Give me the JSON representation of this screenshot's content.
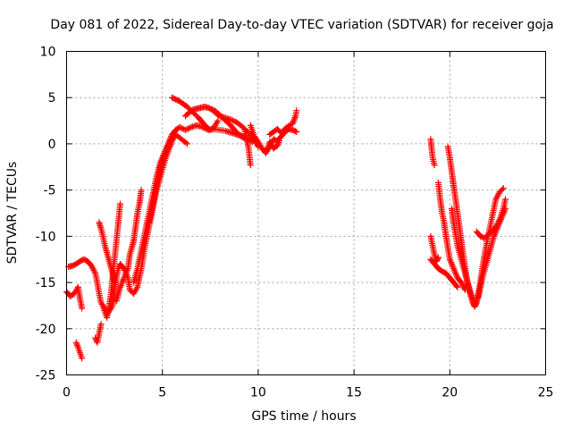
{
  "chart_data": {
    "type": "scatter",
    "title": "Day 081 of 2022, Sidereal Day-to-day VTEC variation (SDTVAR) for receiver goja",
    "xlabel": "GPS time / hours",
    "ylabel": "SDTVAR / TECUs",
    "xlim": [
      0,
      25
    ],
    "ylim": [
      -25,
      10
    ],
    "xticks": [
      0,
      5,
      10,
      15,
      20,
      25
    ],
    "yticks": [
      -25,
      -20,
      -15,
      -10,
      -5,
      0,
      5,
      10
    ],
    "grid": true,
    "marker": "+",
    "color": "#ff0000",
    "series": [
      {
        "name": "SDTVAR",
        "segments": [
          [
            [
              0.0,
              -16.0
            ],
            [
              0.2,
              -16.5
            ],
            [
              0.4,
              -16.2
            ],
            [
              0.6,
              -15.5
            ],
            [
              0.7,
              -16.8
            ],
            [
              0.8,
              -17.8
            ]
          ],
          [
            [
              0.1,
              -13.3
            ],
            [
              0.3,
              -13.2
            ],
            [
              0.5,
              -13.0
            ],
            [
              0.7,
              -12.7
            ],
            [
              0.9,
              -12.5
            ],
            [
              1.1,
              -12.7
            ],
            [
              1.3,
              -13.2
            ],
            [
              1.5,
              -14.0
            ],
            [
              1.6,
              -15.0
            ],
            [
              1.7,
              -16.2
            ],
            [
              1.8,
              -17.2
            ],
            [
              2.0,
              -17.8
            ],
            [
              2.2,
              -18.2
            ],
            [
              2.4,
              -17.5
            ],
            [
              2.5,
              -16.0
            ],
            [
              2.6,
              -14.5
            ],
            [
              2.7,
              -13.5
            ],
            [
              2.8,
              -13.0
            ],
            [
              3.0,
              -13.5
            ],
            [
              3.2,
              -14.5
            ],
            [
              3.3,
              -15.8
            ],
            [
              3.5,
              -16.2
            ],
            [
              3.7,
              -15.5
            ],
            [
              3.9,
              -13.5
            ],
            [
              4.1,
              -11.0
            ],
            [
              4.3,
              -9.0
            ],
            [
              4.5,
              -7.0
            ],
            [
              4.7,
              -5.0
            ],
            [
              4.9,
              -3.5
            ],
            [
              5.1,
              -2.0
            ],
            [
              5.3,
              -0.8
            ],
            [
              5.5,
              0.3
            ],
            [
              5.7,
              1.0
            ]
          ],
          [
            [
              0.5,
              -21.5
            ],
            [
              0.6,
              -22.0
            ],
            [
              0.8,
              -23.2
            ]
          ],
          [
            [
              1.5,
              -21.0
            ],
            [
              1.6,
              -21.5
            ],
            [
              1.7,
              -20.5
            ],
            [
              1.8,
              -19.5
            ]
          ],
          [
            [
              1.7,
              -8.5
            ],
            [
              1.8,
              -9.2
            ],
            [
              1.9,
              -10.0
            ],
            [
              2.0,
              -11.0
            ],
            [
              2.2,
              -12.5
            ],
            [
              2.4,
              -14.0
            ],
            [
              2.5,
              -15.0
            ]
          ],
          [
            [
              1.9,
              -17.5
            ],
            [
              2.0,
              -18.2
            ],
            [
              2.1,
              -18.8
            ],
            [
              2.2,
              -18.0
            ],
            [
              2.3,
              -16.5
            ],
            [
              2.4,
              -14.5
            ],
            [
              2.5,
              -12.5
            ],
            [
              2.6,
              -10.5
            ],
            [
              2.7,
              -8.5
            ],
            [
              2.75,
              -7.5
            ],
            [
              2.8,
              -6.5
            ]
          ],
          [
            [
              2.6,
              -17.0
            ],
            [
              2.8,
              -15.5
            ],
            [
              3.0,
              -14.5
            ],
            [
              3.2,
              -13.5
            ],
            [
              3.3,
              -12.0
            ],
            [
              3.5,
              -10.5
            ],
            [
              3.6,
              -9.0
            ],
            [
              3.7,
              -7.5
            ],
            [
              3.8,
              -6.5
            ],
            [
              3.9,
              -5.0
            ]
          ],
          [
            [
              3.5,
              -15.0
            ],
            [
              3.7,
              -13.5
            ],
            [
              3.9,
              -11.5
            ],
            [
              4.1,
              -9.5
            ],
            [
              4.3,
              -7.5
            ],
            [
              4.5,
              -5.5
            ],
            [
              4.7,
              -3.5
            ],
            [
              4.9,
              -2.0
            ],
            [
              5.1,
              -1.0
            ],
            [
              5.3,
              0.0
            ],
            [
              5.5,
              1.0
            ],
            [
              5.7,
              1.5
            ],
            [
              5.9,
              1.8
            ],
            [
              6.2,
              1.5
            ],
            [
              6.5,
              1.8
            ],
            [
              6.8,
              2.0
            ],
            [
              7.1,
              1.8
            ],
            [
              7.4,
              1.5
            ],
            [
              7.7,
              1.6
            ],
            [
              8.0,
              1.5
            ],
            [
              8.3,
              1.4
            ],
            [
              8.6,
              1.2
            ],
            [
              8.9,
              1.0
            ],
            [
              9.2,
              0.8
            ],
            [
              9.5,
              0.5
            ],
            [
              9.7,
              0.2
            ]
          ],
          [
            [
              4.3,
              -8.5
            ],
            [
              4.5,
              -6.5
            ],
            [
              4.7,
              -4.5
            ],
            [
              4.9,
              -2.5
            ],
            [
              5.1,
              -1.2
            ],
            [
              5.3,
              -0.3
            ],
            [
              5.5,
              0.6
            ],
            [
              5.7,
              1.0
            ],
            [
              6.0,
              0.5
            ],
            [
              6.3,
              0.0
            ]
          ],
          [
            [
              5.5,
              5.0
            ],
            [
              5.7,
              4.8
            ],
            [
              5.9,
              4.6
            ],
            [
              6.1,
              4.3
            ],
            [
              6.3,
              4.0
            ],
            [
              6.5,
              3.6
            ],
            [
              6.7,
              3.2
            ],
            [
              6.9,
              2.8
            ],
            [
              7.1,
              2.3
            ],
            [
              7.3,
              1.8
            ],
            [
              7.5,
              1.5
            ],
            [
              7.7,
              1.8
            ],
            [
              7.9,
              2.5
            ]
          ],
          [
            [
              6.2,
              3.0
            ],
            [
              6.4,
              3.4
            ],
            [
              6.6,
              3.7
            ],
            [
              6.8,
              3.8
            ],
            [
              7.0,
              3.9
            ],
            [
              7.2,
              4.0
            ],
            [
              7.4,
              3.9
            ],
            [
              7.6,
              3.7
            ],
            [
              7.8,
              3.5
            ],
            [
              8.0,
              3.1
            ],
            [
              8.2,
              2.7
            ],
            [
              8.4,
              2.3
            ],
            [
              8.6,
              1.9
            ],
            [
              8.8,
              1.4
            ],
            [
              9.0,
              1.0
            ],
            [
              9.2,
              0.7
            ],
            [
              9.4,
              0.5
            ]
          ],
          [
            [
              7.6,
              3.7
            ],
            [
              7.8,
              3.3
            ],
            [
              8.0,
              3.0
            ],
            [
              8.3,
              2.8
            ],
            [
              8.6,
              2.6
            ],
            [
              8.9,
              2.3
            ],
            [
              9.2,
              1.8
            ],
            [
              9.4,
              1.4
            ],
            [
              9.6,
              1.0
            ],
            [
              9.8,
              0.4
            ],
            [
              10.0,
              -0.3
            ]
          ],
          [
            [
              9.3,
              1.5
            ],
            [
              9.4,
              0.5
            ],
            [
              9.5,
              -0.5
            ],
            [
              9.55,
              -1.5
            ],
            [
              9.6,
              -2.3
            ]
          ],
          [
            [
              9.6,
              2.0
            ],
            [
              9.8,
              0.8
            ],
            [
              10.0,
              0.2
            ],
            [
              10.2,
              -0.5
            ],
            [
              10.4,
              -1.0
            ],
            [
              10.6,
              -0.3
            ],
            [
              10.8,
              0.5
            ],
            [
              11.0,
              0.3
            ],
            [
              11.2,
              0.8
            ],
            [
              11.4,
              1.3
            ],
            [
              11.6,
              1.6
            ],
            [
              11.8,
              1.5
            ],
            [
              12.0,
              1.3
            ]
          ],
          [
            [
              10.6,
              1.0
            ],
            [
              10.8,
              1.3
            ],
            [
              11.0,
              1.6
            ],
            [
              11.2,
              1.2
            ],
            [
              11.5,
              1.8
            ],
            [
              11.8,
              2.2
            ],
            [
              11.95,
              3.0
            ],
            [
              12.0,
              3.6
            ]
          ],
          [
            [
              10.4,
              -0.8
            ],
            [
              10.5,
              -0.4
            ],
            [
              10.6,
              0.2
            ],
            [
              10.8,
              -0.5
            ],
            [
              11.0,
              -0.2
            ],
            [
              11.1,
              0.3
            ]
          ],
          [
            [
              19.0,
              0.5
            ],
            [
              19.05,
              -0.5
            ],
            [
              19.1,
              -1.5
            ],
            [
              19.2,
              -2.3
            ]
          ],
          [
            [
              19.0,
              -10.0
            ],
            [
              19.1,
              -11.0
            ],
            [
              19.2,
              -12.0
            ],
            [
              19.3,
              -12.7
            ],
            [
              19.4,
              -12.3
            ]
          ],
          [
            [
              19.0,
              -12.5
            ],
            [
              19.2,
              -13.0
            ],
            [
              19.4,
              -13.5
            ],
            [
              19.6,
              -13.8
            ],
            [
              19.8,
              -14.0
            ],
            [
              20.0,
              -14.5
            ],
            [
              20.2,
              -15.0
            ],
            [
              20.4,
              -15.5
            ]
          ],
          [
            [
              19.4,
              -4.2
            ],
            [
              19.5,
              -6.0
            ],
            [
              19.6,
              -7.5
            ],
            [
              19.7,
              -8.5
            ],
            [
              19.8,
              -10.0
            ],
            [
              19.9,
              -11.3
            ],
            [
              20.0,
              -12.5
            ],
            [
              20.2,
              -13.5
            ],
            [
              20.4,
              -14.5
            ],
            [
              20.6,
              -15.0
            ],
            [
              20.8,
              -15.8
            ]
          ],
          [
            [
              19.9,
              -0.3
            ],
            [
              20.0,
              -1.5
            ],
            [
              20.1,
              -3.0
            ],
            [
              20.2,
              -4.5
            ],
            [
              20.3,
              -6.0
            ],
            [
              20.4,
              -7.5
            ],
            [
              20.5,
              -9.0
            ],
            [
              20.6,
              -10.5
            ],
            [
              20.7,
              -12.0
            ],
            [
              20.8,
              -13.5
            ],
            [
              20.9,
              -14.8
            ],
            [
              21.0,
              -15.8
            ],
            [
              21.1,
              -16.5
            ],
            [
              21.2,
              -17.2
            ],
            [
              21.3,
              -17.6
            ],
            [
              21.4,
              -17.2
            ],
            [
              21.5,
              -16.0
            ],
            [
              21.6,
              -14.8
            ],
            [
              21.7,
              -13.5
            ],
            [
              21.8,
              -12.2
            ],
            [
              21.9,
              -11.0
            ],
            [
              22.0,
              -10.0
            ],
            [
              22.1,
              -9.0
            ],
            [
              22.2,
              -8.0
            ],
            [
              22.3,
              -7.0
            ],
            [
              22.4,
              -6.0
            ],
            [
              22.6,
              -5.2
            ],
            [
              22.8,
              -4.8
            ]
          ],
          [
            [
              20.1,
              -7.0
            ],
            [
              20.2,
              -8.5
            ],
            [
              20.3,
              -9.8
            ],
            [
              20.4,
              -11.0
            ],
            [
              20.6,
              -12.5
            ],
            [
              20.8,
              -14.0
            ],
            [
              21.0,
              -15.5
            ],
            [
              21.2,
              -16.8
            ],
            [
              21.3,
              -17.5
            ],
            [
              21.5,
              -16.5
            ],
            [
              21.7,
              -14.5
            ],
            [
              21.9,
              -13.0
            ],
            [
              22.1,
              -11.5
            ],
            [
              22.3,
              -10.0
            ],
            [
              22.5,
              -9.0
            ],
            [
              22.7,
              -8.0
            ],
            [
              22.9,
              -7.0
            ]
          ],
          [
            [
              21.4,
              -9.5
            ],
            [
              21.6,
              -10.0
            ],
            [
              21.8,
              -10.2
            ],
            [
              22.0,
              -9.8
            ],
            [
              22.2,
              -9.5
            ],
            [
              22.4,
              -9.0
            ],
            [
              22.6,
              -8.2
            ],
            [
              22.8,
              -7.0
            ],
            [
              22.9,
              -6.0
            ]
          ]
        ]
      }
    ]
  }
}
